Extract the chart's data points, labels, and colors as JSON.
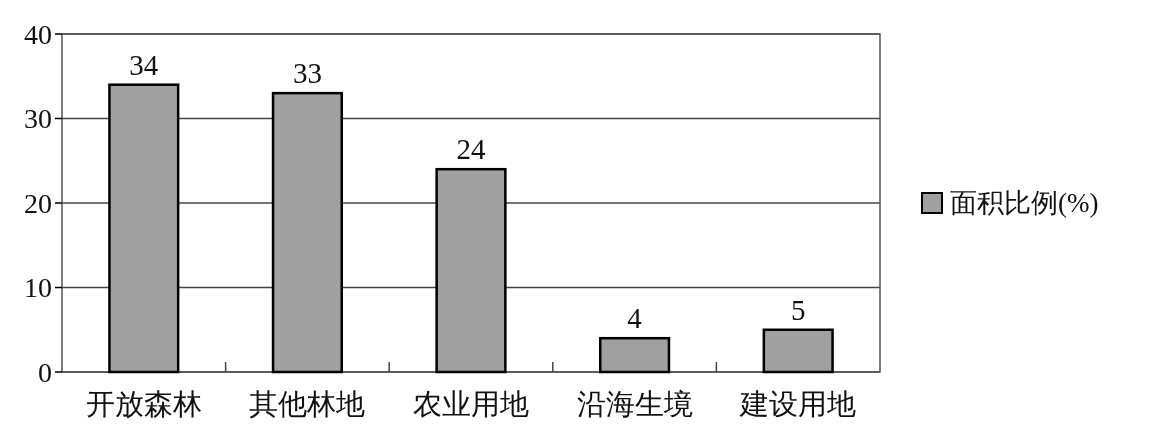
{
  "chart_data": {
    "type": "bar",
    "categories": [
      "开放森林",
      "其他林地",
      "农业用地",
      "沿海生境",
      "建设用地"
    ],
    "series": [
      {
        "name": "面积比例(%)",
        "color": "#a0a0a0",
        "values": [
          34,
          33,
          24,
          4,
          5
        ]
      }
    ],
    "ylim": [
      0,
      40
    ],
    "yticks": [
      0,
      10,
      20,
      30,
      40
    ],
    "grid": "y",
    "legend": "right",
    "data_labels": true
  }
}
